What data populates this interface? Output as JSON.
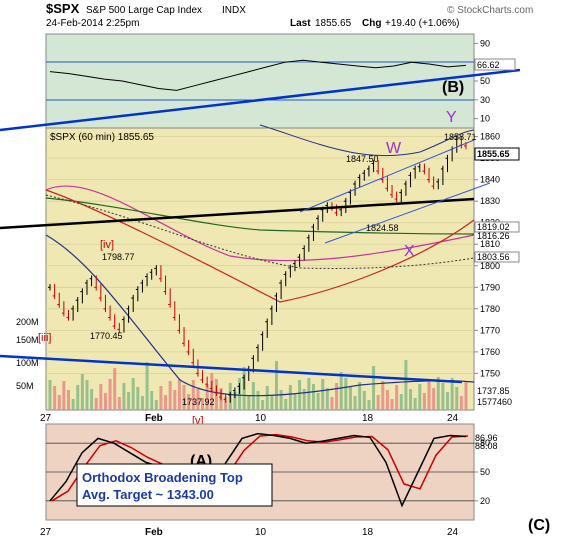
{
  "header": {
    "symbol": "$SPX",
    "name": "S&P 500 Large Cap Index",
    "exchange": "INDX",
    "timestamp": "24-Feb-2014 2:25pm",
    "last_label": "Last",
    "last": "1855.65",
    "chg_label": "Chg",
    "chg": "+19.40 (+1.06%)",
    "credit": "© StockCharts.com"
  },
  "main_legend": "$SPX (60 min) 1855.65",
  "annotations": {
    "B": "(B)",
    "Y": "Y",
    "W": "W",
    "X": "X",
    "iv": "[iv]",
    "iii": "[iii]",
    "v": "[v]",
    "C": "C",
    "A": "(A)",
    "C_big": "(C)",
    "target_line1": "Orthodox Broadening Top",
    "target_line2": "Avg. Target ~ 1343.00"
  },
  "price_callouts": [
    "1858.71",
    "1847.50",
    "1824.58",
    "1798.77",
    "1770.45",
    "1737.92"
  ],
  "right_labels": {
    "price": "1855.65",
    "ma1": "1819.02",
    "ma2": "1816.26",
    "ma3": "1803.56",
    "vol1": "1737.85",
    "vol2": "1577460",
    "rsi": "66.62",
    "sto1": "86.96",
    "sto2": "88.08"
  },
  "volume_labels": [
    "200M",
    "150M",
    "100M",
    "50M"
  ],
  "x_labels": [
    "27",
    "Feb",
    "10",
    "18",
    "24"
  ],
  "colors": {
    "panel_bg": "#efe8b3",
    "upper_bg": "#d4e6d4",
    "stoch_bg": "#efd3c2",
    "candle_up": "#000000",
    "candle_down": "#cc0000",
    "trend": "#0033cc",
    "black_line": "#000000",
    "violet": "#9933cc",
    "red_label": "#cc0000"
  },
  "chart_data": [
    {
      "type": "line",
      "title": "RSI",
      "y_ticks": [
        10,
        30,
        50,
        70,
        90
      ],
      "ylim": [
        0,
        100
      ],
      "series": [
        {
          "values": [
            60,
            58,
            55,
            52,
            50,
            46,
            42,
            40,
            45,
            50,
            55,
            60,
            65,
            70,
            72,
            70,
            68,
            66,
            64,
            66,
            70,
            68,
            65,
            66.62
          ]
        }
      ],
      "last": 66.62
    },
    {
      "type": "line",
      "title": "$SPX (60 min) 1855.65",
      "y_ticks": [
        1750,
        1760,
        1770,
        1780,
        1790,
        1800,
        1810,
        1820,
        1830,
        1840,
        1850,
        1860
      ],
      "ylim": [
        1733,
        1864
      ],
      "x_ticks": [
        "27",
        "Feb",
        "10",
        "18",
        "24"
      ],
      "series": [
        {
          "name": "$SPX",
          "values": [
            1790,
            1786,
            1782,
            1778,
            1776,
            1780,
            1784,
            1788,
            1792,
            1794,
            1790,
            1785,
            1780,
            1776,
            1772,
            1770.45,
            1775,
            1780,
            1785,
            1789,
            1792,
            1795,
            1797,
            1798.77,
            1794,
            1788,
            1782,
            1776,
            1770,
            1764,
            1760,
            1755,
            1750,
            1747,
            1745,
            1743,
            1741,
            1739,
            1737.92,
            1740,
            1742,
            1744,
            1748,
            1752,
            1757,
            1762,
            1768,
            1774,
            1780,
            1786,
            1792,
            1796,
            1799,
            1801,
            1804,
            1808,
            1813,
            1818,
            1822,
            1826,
            1828,
            1827,
            1824.58,
            1826,
            1830,
            1834,
            1838,
            1841,
            1843,
            1845,
            1847.5,
            1844,
            1840,
            1836,
            1833,
            1831,
            1834,
            1838,
            1842,
            1845,
            1846,
            1844,
            1840,
            1837,
            1839,
            1845,
            1850,
            1854,
            1858.71,
            1856,
            1855.65
          ]
        }
      ],
      "last": 1855.65
    },
    {
      "type": "line",
      "title": "Stochastic",
      "y_ticks": [
        20,
        50,
        80
      ],
      "ylim": [
        0,
        100
      ],
      "series": [
        {
          "values": [
            20,
            40,
            70,
            85,
            80,
            70,
            60,
            55,
            40,
            30,
            35,
            60,
            85,
            90,
            88,
            85,
            80,
            82,
            85,
            88,
            86,
            60,
            15,
            50,
            85,
            88,
            86.96
          ]
        }
      ],
      "last": 86.96
    }
  ]
}
